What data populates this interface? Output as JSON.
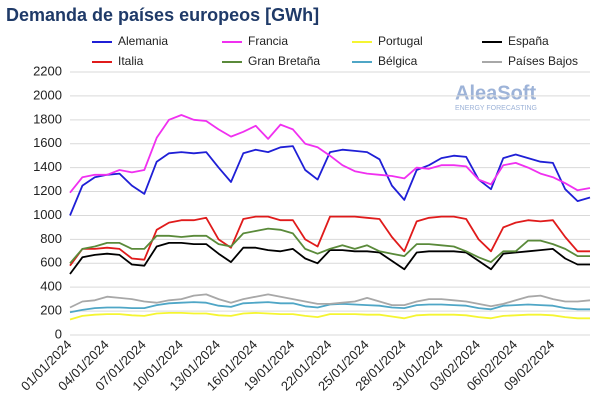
{
  "chart_data": {
    "type": "line",
    "title": "Demanda de países europeos [GWh]",
    "logo": {
      "name": "AleaSoft",
      "tagline": "ENERGY FORECASTING"
    },
    "categories": [
      "01/01/2024",
      null,
      null,
      "04/01/2024",
      null,
      null,
      "07/01/2024",
      null,
      null,
      "10/01/2024",
      null,
      null,
      "13/01/2024",
      null,
      null,
      "16/01/2024",
      null,
      null,
      "19/01/2024",
      null,
      null,
      "22/01/2024",
      null,
      null,
      "25/01/2024",
      null,
      null,
      "28/01/2024",
      null,
      null,
      "31/01/2024",
      null,
      null,
      "03/02/2024",
      null,
      null,
      "06/02/2024",
      null,
      null,
      "09/02/2024",
      null,
      null,
      null
    ],
    "ylim": [
      0,
      2200
    ],
    "yticks": [
      0,
      200,
      400,
      600,
      800,
      1000,
      1200,
      1400,
      1600,
      1800,
      2000,
      2200
    ],
    "grid": true,
    "series": [
      {
        "name": "Alemania",
        "color": "#1f1fd6",
        "values": [
          1000,
          1250,
          1320,
          1340,
          1350,
          1250,
          1180,
          1450,
          1520,
          1530,
          1520,
          1530,
          1400,
          1280,
          1520,
          1550,
          1530,
          1570,
          1580,
          1380,
          1300,
          1530,
          1550,
          1540,
          1530,
          1470,
          1250,
          1130,
          1380,
          1420,
          1480,
          1500,
          1490,
          1300,
          1220,
          1480,
          1510,
          1480,
          1450,
          1440,
          1220,
          1120,
          1150
        ]
      },
      {
        "name": "Francia",
        "color": "#f030f0",
        "values": [
          1190,
          1320,
          1340,
          1340,
          1380,
          1360,
          1380,
          1650,
          1800,
          1840,
          1800,
          1790,
          1720,
          1660,
          1700,
          1750,
          1640,
          1760,
          1720,
          1600,
          1570,
          1500,
          1420,
          1370,
          1350,
          1340,
          1330,
          1310,
          1400,
          1390,
          1420,
          1420,
          1410,
          1300,
          1260,
          1420,
          1440,
          1400,
          1350,
          1320,
          1270,
          1210,
          1230
        ]
      },
      {
        "name": "Portugal",
        "color": "#f5f532",
        "values": [
          130,
          160,
          170,
          175,
          175,
          165,
          160,
          180,
          185,
          185,
          180,
          180,
          165,
          160,
          180,
          185,
          180,
          175,
          175,
          160,
          150,
          175,
          175,
          175,
          170,
          170,
          155,
          140,
          165,
          170,
          170,
          170,
          165,
          150,
          140,
          160,
          165,
          170,
          170,
          165,
          150,
          140,
          140
        ]
      },
      {
        "name": "España",
        "color": "#000000",
        "values": [
          510,
          650,
          670,
          680,
          670,
          590,
          580,
          740,
          770,
          770,
          760,
          760,
          680,
          610,
          730,
          730,
          710,
          700,
          720,
          640,
          600,
          710,
          710,
          700,
          700,
          690,
          620,
          550,
          690,
          700,
          700,
          700,
          690,
          620,
          550,
          680,
          690,
          700,
          710,
          720,
          640,
          590,
          590
        ]
      },
      {
        "name": "Italia",
        "color": "#e01b1b",
        "values": [
          580,
          720,
          720,
          730,
          720,
          640,
          630,
          880,
          940,
          960,
          960,
          980,
          800,
          730,
          970,
          990,
          990,
          960,
          960,
          800,
          740,
          990,
          990,
          990,
          980,
          970,
          820,
          700,
          950,
          980,
          990,
          990,
          970,
          800,
          700,
          900,
          940,
          960,
          950,
          960,
          820,
          700,
          700
        ]
      },
      {
        "name": "Gran Bretaña",
        "color": "#5a8a3a",
        "values": [
          600,
          720,
          740,
          770,
          770,
          720,
          720,
          830,
          830,
          820,
          830,
          830,
          760,
          740,
          850,
          870,
          890,
          880,
          850,
          720,
          680,
          720,
          750,
          720,
          750,
          700,
          680,
          660,
          760,
          760,
          750,
          740,
          700,
          650,
          610,
          700,
          700,
          790,
          790,
          760,
          720,
          660,
          660
        ]
      },
      {
        "name": "Bélgica",
        "color": "#4fa6c6",
        "values": [
          190,
          210,
          225,
          230,
          230,
          225,
          225,
          250,
          265,
          270,
          275,
          270,
          245,
          235,
          265,
          270,
          275,
          265,
          265,
          240,
          230,
          255,
          260,
          255,
          250,
          245,
          230,
          225,
          250,
          255,
          255,
          250,
          245,
          225,
          215,
          245,
          250,
          255,
          250,
          245,
          225,
          215,
          215
        ]
      },
      {
        "name": "Países Bajos",
        "color": "#a8a8a8",
        "values": [
          230,
          280,
          290,
          320,
          310,
          300,
          280,
          270,
          290,
          300,
          330,
          340,
          300,
          270,
          300,
          320,
          340,
          320,
          300,
          280,
          260,
          260,
          270,
          280,
          310,
          280,
          250,
          250,
          280,
          300,
          300,
          290,
          280,
          260,
          240,
          260,
          290,
          320,
          330,
          300,
          280,
          280,
          290
        ]
      }
    ]
  }
}
